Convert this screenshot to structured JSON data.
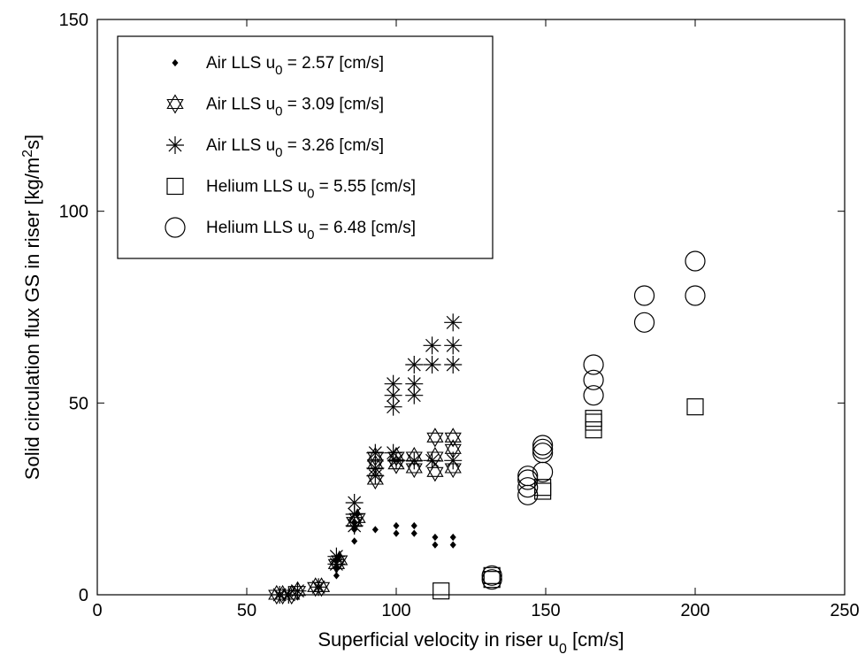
{
  "chart_data": {
    "type": "scatter",
    "title": "",
    "xlabel": "Superficial velocity in riser u",
    "xlabel_sub": "0",
    "xlabel_tail": " [cm/s]",
    "ylabel": "Solid circulation flux GS in riser [kg/m",
    "ylabel_sup": "2",
    "ylabel_tail": "s]",
    "xlim": [
      0,
      250
    ],
    "ylim": [
      0,
      150
    ],
    "xticks": [
      0,
      50,
      100,
      150,
      200,
      250
    ],
    "yticks": [
      0,
      50,
      100,
      150
    ],
    "grid": false,
    "legend_position": "top-left",
    "series": [
      {
        "name_prefix": "Air LLS u",
        "name_sub": "0",
        "name_suffix": " = 2.57 [cm/s]",
        "marker": "dot",
        "points": [
          [
            80,
            5
          ],
          [
            80,
            7
          ],
          [
            80,
            9
          ],
          [
            81,
            10
          ],
          [
            86,
            14
          ],
          [
            86,
            17
          ],
          [
            86,
            19
          ],
          [
            87,
            21
          ],
          [
            93,
            17
          ],
          [
            100,
            16
          ],
          [
            100,
            18
          ],
          [
            106,
            16
          ],
          [
            106,
            18
          ],
          [
            113,
            13
          ],
          [
            113,
            15
          ],
          [
            119,
            13
          ],
          [
            119,
            15
          ]
        ]
      },
      {
        "name_prefix": "Air LLS u",
        "name_sub": "0",
        "name_suffix": " = 3.09 [cm/s]",
        "marker": "star6",
        "points": [
          [
            60,
            0
          ],
          [
            62,
            0
          ],
          [
            65,
            0
          ],
          [
            67,
            1
          ],
          [
            73,
            2
          ],
          [
            75,
            2
          ],
          [
            80,
            8
          ],
          [
            81,
            9
          ],
          [
            86,
            19
          ],
          [
            87,
            20
          ],
          [
            93,
            30
          ],
          [
            93,
            34
          ],
          [
            93,
            36
          ],
          [
            100,
            34
          ],
          [
            100,
            36
          ],
          [
            106,
            33
          ],
          [
            106,
            36
          ],
          [
            113,
            32
          ],
          [
            113,
            36
          ],
          [
            113,
            41
          ],
          [
            119,
            33
          ],
          [
            119,
            38
          ],
          [
            119,
            41
          ]
        ]
      },
      {
        "name_prefix": "Air LLS u",
        "name_sub": "0",
        "name_suffix": " = 3.26 [cm/s]",
        "marker": "asterisk",
        "points": [
          [
            61,
            0
          ],
          [
            64,
            0
          ],
          [
            67,
            1
          ],
          [
            74,
            2
          ],
          [
            80,
            8
          ],
          [
            80,
            10
          ],
          [
            86,
            18
          ],
          [
            86,
            21
          ],
          [
            86,
            24
          ],
          [
            93,
            31
          ],
          [
            93,
            33
          ],
          [
            93,
            37
          ],
          [
            99,
            37
          ],
          [
            99,
            49
          ],
          [
            99,
            52
          ],
          [
            99,
            55
          ],
          [
            106,
            52
          ],
          [
            106,
            55
          ],
          [
            106,
            60
          ],
          [
            112,
            60
          ],
          [
            112,
            65
          ],
          [
            119,
            60
          ],
          [
            119,
            65
          ],
          [
            119,
            71
          ],
          [
            100,
            35
          ],
          [
            106,
            35
          ],
          [
            112,
            35
          ],
          [
            119,
            35
          ]
        ]
      },
      {
        "name_prefix": "Helium LLS u",
        "name_sub": "0",
        "name_suffix": " = 5.55 [cm/s]",
        "marker": "square",
        "points": [
          [
            115,
            1
          ],
          [
            132,
            4
          ],
          [
            132,
            5
          ],
          [
            149,
            27
          ],
          [
            149,
            28
          ],
          [
            166,
            43
          ],
          [
            166,
            45
          ],
          [
            166,
            46
          ],
          [
            200,
            49
          ]
        ]
      },
      {
        "name_prefix": "Helium LLS u",
        "name_sub": "0",
        "name_suffix": " = 6.48 [cm/s]",
        "marker": "circle",
        "points": [
          [
            132,
            4
          ],
          [
            132,
            5
          ],
          [
            144,
            26
          ],
          [
            144,
            28
          ],
          [
            144,
            30
          ],
          [
            144,
            31
          ],
          [
            149,
            32
          ],
          [
            149,
            37
          ],
          [
            149,
            38
          ],
          [
            149,
            39
          ],
          [
            166,
            52
          ],
          [
            166,
            56
          ],
          [
            166,
            60
          ],
          [
            183,
            71
          ],
          [
            183,
            78
          ],
          [
            200,
            78
          ],
          [
            200,
            87
          ]
        ]
      }
    ]
  }
}
